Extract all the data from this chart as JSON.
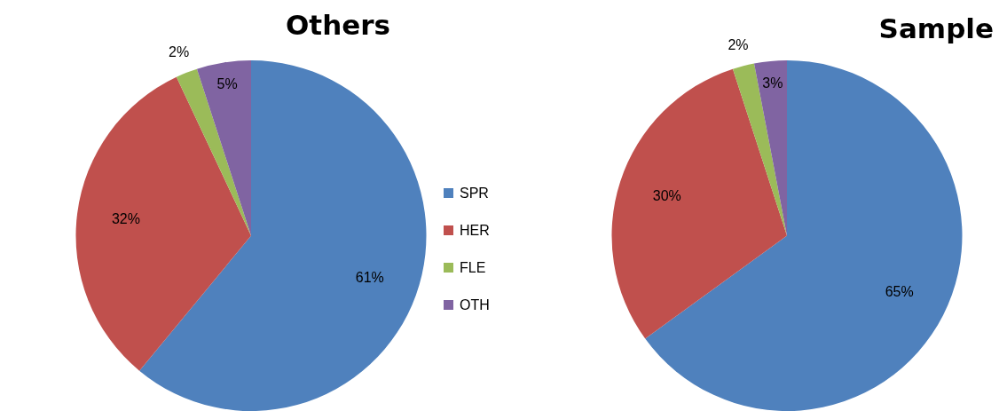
{
  "chart_data": {
    "type": "pie",
    "categories": [
      "SPR",
      "HER",
      "FLE",
      "OTH"
    ],
    "colors": [
      "#4f81bd",
      "#c0504d",
      "#9bbb59",
      "#8064a2"
    ],
    "legend": "center",
    "series": [
      {
        "name": "Others",
        "values": [
          61,
          32,
          2,
          5
        ],
        "value_labels": [
          "61%",
          "32%",
          "2%",
          "5%"
        ]
      },
      {
        "name": "Sample",
        "values": [
          65,
          30,
          2,
          3
        ],
        "value_labels": [
          "65%",
          "30%",
          "2%",
          "3%"
        ]
      }
    ]
  }
}
